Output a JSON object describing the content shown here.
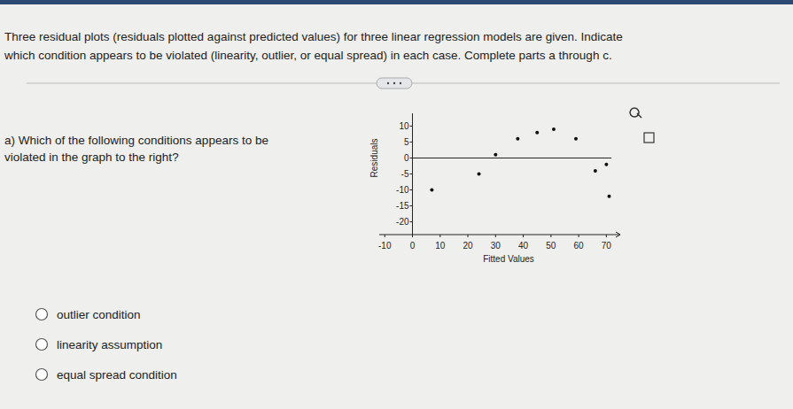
{
  "instructions": [
    "Three residual plots (residuals plotted against predicted values) for three linear regression models are given. Indicate",
    "which condition appears to be violated (linearity, outlier, or equal spread) in each case. Complete parts a through c."
  ],
  "question": [
    "a) Which of the following conditions appears to be",
    "violated in the graph to the right?"
  ],
  "options": [
    "outlier condition",
    "linearity assumption",
    "equal spread condition"
  ],
  "chart_data": {
    "type": "scatter",
    "x_label": "Fitted Values",
    "y_label": "Residuals",
    "x": [
      7,
      24,
      30,
      38,
      45,
      51,
      59,
      66,
      70,
      71
    ],
    "values": [
      -10,
      -5,
      1,
      6,
      8,
      9,
      6,
      -4,
      -2,
      -12
    ],
    "color": "#111111",
    "marker": "circle",
    "xlim": [
      -12,
      75
    ],
    "ylim": [
      -24,
      14
    ],
    "xticks": [
      -10,
      0,
      10,
      20,
      30,
      40,
      50,
      60,
      70
    ],
    "yticks": [
      10,
      5,
      0,
      -5,
      -10,
      -15,
      -20
    ]
  }
}
